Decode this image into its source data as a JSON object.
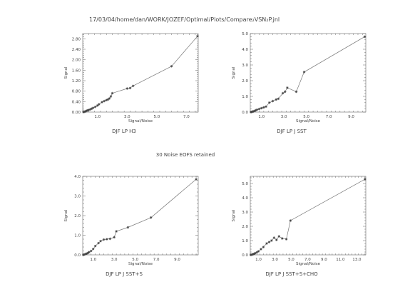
{
  "page": {
    "path_title": "17/03/04/home/dan/WORK/JOZEF/Optimal/Plots/Compare₂VSN₂P.jnl",
    "note": "30 Noise EOFS retained"
  },
  "chart_data": [
    {
      "type": "line",
      "title": "DJF LP H3",
      "xlabel": "Signal/Noise",
      "ylabel": "Signal",
      "xlim": [
        0,
        7.8
      ],
      "ylim": [
        0,
        3.0
      ],
      "xticks": [
        1.0,
        3.0,
        5.0,
        7.0
      ],
      "yticks": [
        0.0,
        0.4,
        0.8,
        1.2,
        1.6,
        2.0,
        2.4,
        2.8
      ],
      "ytick_labels": [
        "0.00",
        "0.40",
        "0.80",
        "1.20",
        "1.60",
        "2.00",
        "2.40",
        "2.80"
      ],
      "xtick_labels": [
        "1.0",
        "3.0",
        "5.0",
        "7.0"
      ],
      "points": [
        [
          0.05,
          0.0
        ],
        [
          0.1,
          0.01
        ],
        [
          0.15,
          0.02
        ],
        [
          0.2,
          0.03
        ],
        [
          0.25,
          0.05
        ],
        [
          0.3,
          0.06
        ],
        [
          0.35,
          0.07
        ],
        [
          0.4,
          0.08
        ],
        [
          0.5,
          0.1
        ],
        [
          0.6,
          0.13
        ],
        [
          0.7,
          0.16
        ],
        [
          0.85,
          0.2
        ],
        [
          1.0,
          0.25
        ],
        [
          1.1,
          0.3
        ],
        [
          1.3,
          0.38
        ],
        [
          1.45,
          0.42
        ],
        [
          1.6,
          0.46
        ],
        [
          1.7,
          0.48
        ],
        [
          1.8,
          0.52
        ],
        [
          1.9,
          0.6
        ],
        [
          2.0,
          0.72
        ],
        [
          3.0,
          0.9
        ],
        [
          3.2,
          0.92
        ],
        [
          3.4,
          1.0
        ],
        [
          6.0,
          1.75
        ],
        [
          7.75,
          2.9
        ]
      ]
    },
    {
      "type": "line",
      "title": "DJF  LP  J  SST",
      "xlabel": "Signal/Noise",
      "ylabel": "Signal",
      "xlim": [
        0,
        10.3
      ],
      "ylim": [
        0,
        5.0
      ],
      "xticks": [
        1.0,
        3.0,
        5.0,
        7.0,
        9.0
      ],
      "yticks": [
        0.0,
        1.0,
        2.0,
        3.0,
        4.0,
        5.0
      ],
      "ytick_labels": [
        "0.0",
        "1.0",
        "2.0",
        "3.0",
        "4.0",
        "5.0"
      ],
      "xtick_labels": [
        "1.0",
        "3.0",
        "5.0",
        "7.0",
        "9.0"
      ],
      "points": [
        [
          0.05,
          0.0
        ],
        [
          0.1,
          0.01
        ],
        [
          0.15,
          0.02
        ],
        [
          0.2,
          0.03
        ],
        [
          0.3,
          0.05
        ],
        [
          0.4,
          0.08
        ],
        [
          0.5,
          0.12
        ],
        [
          0.6,
          0.15
        ],
        [
          0.8,
          0.2
        ],
        [
          1.0,
          0.25
        ],
        [
          1.2,
          0.3
        ],
        [
          1.4,
          0.35
        ],
        [
          1.7,
          0.6
        ],
        [
          2.0,
          0.7
        ],
        [
          2.3,
          0.8
        ],
        [
          2.5,
          0.85
        ],
        [
          2.9,
          1.2
        ],
        [
          3.1,
          1.3
        ],
        [
          3.3,
          1.55
        ],
        [
          4.1,
          1.3
        ],
        [
          4.8,
          2.55
        ],
        [
          10.2,
          4.8
        ]
      ]
    },
    {
      "type": "line",
      "title": "DJF  LP  J  SST+S",
      "xlabel": "Signal/Noise",
      "ylabel": "Signal",
      "xlim": [
        0,
        11.0
      ],
      "ylim": [
        0,
        4.0
      ],
      "xticks": [
        1.0,
        3.0,
        5.0,
        7.0,
        9.0
      ],
      "yticks": [
        0.0,
        1.0,
        2.0,
        3.0,
        4.0
      ],
      "ytick_labels": [
        "0.0",
        "1.0",
        "2.0",
        "3.0",
        "4.0"
      ],
      "xtick_labels": [
        "1.0",
        "3.0",
        "5.0",
        "7.0",
        "9.0"
      ],
      "points": [
        [
          0.05,
          0.0
        ],
        [
          0.1,
          0.01
        ],
        [
          0.2,
          0.03
        ],
        [
          0.3,
          0.05
        ],
        [
          0.4,
          0.07
        ],
        [
          0.5,
          0.1
        ],
        [
          0.6,
          0.14
        ],
        [
          0.8,
          0.2
        ],
        [
          1.0,
          0.3
        ],
        [
          1.2,
          0.45
        ],
        [
          1.5,
          0.6
        ],
        [
          1.7,
          0.7
        ],
        [
          2.0,
          0.78
        ],
        [
          2.3,
          0.8
        ],
        [
          2.6,
          0.82
        ],
        [
          3.0,
          0.9
        ],
        [
          3.2,
          1.2
        ],
        [
          4.3,
          1.4
        ],
        [
          6.5,
          1.9
        ],
        [
          10.8,
          3.85
        ]
      ]
    },
    {
      "type": "line",
      "title": "DJF  LP  J  SST+S+CHO",
      "xlabel": "Signal/Noise",
      "ylabel": "Signal",
      "xlim": [
        0,
        14.1
      ],
      "ylim": [
        0,
        5.5
      ],
      "xticks": [
        1.0,
        3.0,
        5.0,
        7.0,
        9.0,
        11.0,
        13.0
      ],
      "yticks": [
        0.0,
        1.0,
        2.0,
        3.0,
        4.0,
        5.0
      ],
      "ytick_labels": [
        "0.0",
        "1.0",
        "2.0",
        "3.0",
        "4.0",
        "5.0"
      ],
      "xtick_labels": [
        "1.0",
        "3.0",
        "5.0",
        "7.0",
        "9.0",
        "11.0",
        "13.0"
      ],
      "points": [
        [
          0.05,
          0.0
        ],
        [
          0.1,
          0.01
        ],
        [
          0.2,
          0.02
        ],
        [
          0.3,
          0.04
        ],
        [
          0.4,
          0.06
        ],
        [
          0.5,
          0.08
        ],
        [
          0.6,
          0.12
        ],
        [
          0.8,
          0.18
        ],
        [
          1.0,
          0.25
        ],
        [
          1.3,
          0.4
        ],
        [
          1.6,
          0.55
        ],
        [
          2.0,
          0.8
        ],
        [
          2.3,
          0.9
        ],
        [
          2.6,
          1.0
        ],
        [
          2.9,
          1.2
        ],
        [
          3.2,
          1.05
        ],
        [
          3.5,
          1.3
        ],
        [
          3.9,
          1.15
        ],
        [
          4.4,
          1.1
        ],
        [
          4.9,
          2.4
        ],
        [
          14.0,
          5.3
        ]
      ]
    }
  ]
}
